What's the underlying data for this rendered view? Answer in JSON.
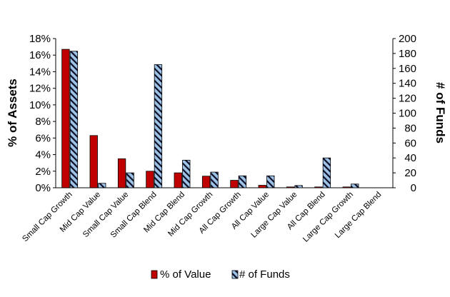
{
  "chart_data": {
    "type": "bar",
    "categories": [
      "Small Cap Growth",
      "Mid Cap Value",
      "Small Cap Value",
      "Small Cap Blend",
      "Mid Cap Blend",
      "Mid Cap Growth",
      "All Cap Growth",
      "All Cap Value",
      "Large Cap Value",
      "All Cap Blend",
      "Large Cap Growth",
      "Large Cap Blend"
    ],
    "series": [
      {
        "name": "% of Value",
        "axis": "left",
        "color": "#c00000",
        "values": [
          16.7,
          6.3,
          3.5,
          2.0,
          1.8,
          1.4,
          0.9,
          0.3,
          0.1,
          0.1,
          0.1,
          0.0
        ]
      },
      {
        "name": "# of Funds",
        "axis": "right",
        "color": "#9dc3e6",
        "pattern": "diagonal-hatch",
        "values": [
          183,
          6,
          20,
          165,
          37,
          21,
          16,
          16,
          3,
          40,
          5,
          0
        ]
      }
    ],
    "ylabel": "% of Assets",
    "y2label": "# of Funds",
    "ylim": [
      0,
      18
    ],
    "y2lim": [
      0,
      200
    ],
    "yticks": [
      "0%",
      "2%",
      "4%",
      "6%",
      "8%",
      "10%",
      "12%",
      "14%",
      "16%",
      "18%"
    ],
    "y2ticks": [
      "0",
      "20",
      "40",
      "60",
      "80",
      "100",
      "120",
      "140",
      "160",
      "180",
      "200"
    ],
    "grid": false,
    "legend": "bottom"
  }
}
